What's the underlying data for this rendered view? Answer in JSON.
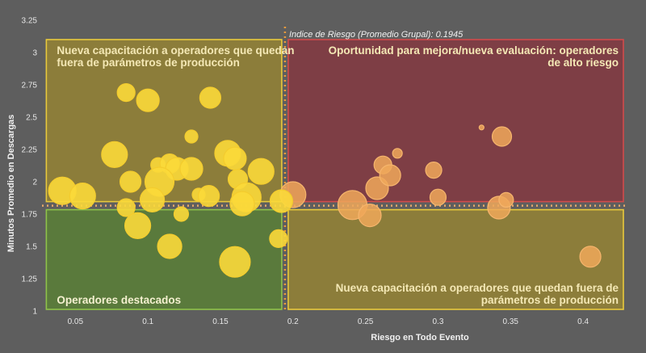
{
  "chart_data": {
    "type": "scatter",
    "xlabel": "Riesgo en Todo Evento",
    "ylabel": "Minutos Promedio en Descargas",
    "xlim": [
      0.027,
      0.43
    ],
    "ylim": [
      1,
      3.25
    ],
    "x_ticks": [
      "0.05",
      "0.1",
      "0.15",
      "0.2",
      "0.25",
      "0.3",
      "0.35",
      "0.4"
    ],
    "y_ticks": [
      "1",
      "1.25",
      "1.5",
      "1.75",
      "2",
      "2.25",
      "2.5",
      "2.75",
      "3",
      "3.25"
    ],
    "reference": {
      "label": "Indice de Riesgo (Promedio Grupal): 0.1945",
      "x": 0.1945,
      "y": 1.815
    },
    "quadrants": [
      {
        "name": "top-left",
        "label": "Nueva capacitación a operadores que quedan fuera de parámetros de producción",
        "lines": [
          "Nueva capacitación a operadores que quedan",
          "fuera de parámetros de producción"
        ],
        "color": "#e8c93c",
        "fill": "#8c7d3a"
      },
      {
        "name": "top-right",
        "label": "Oportunidad para mejora/nueva evaluación: operadores de alto riesgo",
        "lines": [
          "Oportunidad para mejora/nueva evaluación: operadores",
          "de alto riesgo"
        ],
        "color": "#d14b4b",
        "fill": "#7e3e45"
      },
      {
        "name": "bottom-left",
        "label": "Operadores destacados",
        "lines": [
          "Operadores destacados"
        ],
        "color": "#8ec24a",
        "fill": "#5a7a3c"
      },
      {
        "name": "bottom-right",
        "label": "Nueva capacitación a operadores que quedan fuera de parámetros de producción",
        "lines": [
          "Nueva capacitación a operadores que quedan fuera de",
          "parámetros de producción"
        ],
        "color": "#e8c93c",
        "fill": "#8c7d3a"
      }
    ],
    "points": [
      {
        "x": 0.085,
        "y": 2.69,
        "s": 11
      },
      {
        "x": 0.1,
        "y": 2.63,
        "s": 14
      },
      {
        "x": 0.143,
        "y": 2.65,
        "s": 13
      },
      {
        "x": 0.13,
        "y": 2.35,
        "s": 8
      },
      {
        "x": 0.077,
        "y": 2.21,
        "s": 16
      },
      {
        "x": 0.107,
        "y": 2.13,
        "s": 9
      },
      {
        "x": 0.115,
        "y": 2.14,
        "s": 12
      },
      {
        "x": 0.12,
        "y": 2.1,
        "s": 14
      },
      {
        "x": 0.13,
        "y": 2.1,
        "s": 14
      },
      {
        "x": 0.155,
        "y": 2.22,
        "s": 16
      },
      {
        "x": 0.16,
        "y": 2.18,
        "s": 14
      },
      {
        "x": 0.178,
        "y": 2.08,
        "s": 16
      },
      {
        "x": 0.162,
        "y": 2.02,
        "s": 12
      },
      {
        "x": 0.088,
        "y": 2.0,
        "s": 13
      },
      {
        "x": 0.108,
        "y": 2.0,
        "s": 18
      },
      {
        "x": 0.041,
        "y": 1.93,
        "s": 17
      },
      {
        "x": 0.055,
        "y": 1.89,
        "s": 16
      },
      {
        "x": 0.103,
        "y": 1.86,
        "s": 15
      },
      {
        "x": 0.135,
        "y": 1.9,
        "s": 8
      },
      {
        "x": 0.142,
        "y": 1.89,
        "s": 13
      },
      {
        "x": 0.168,
        "y": 1.88,
        "s": 18
      },
      {
        "x": 0.165,
        "y": 1.83,
        "s": 15
      },
      {
        "x": 0.2,
        "y": 1.9,
        "s": 16
      },
      {
        "x": 0.192,
        "y": 1.85,
        "s": 14
      },
      {
        "x": 0.085,
        "y": 1.8,
        "s": 11
      },
      {
        "x": 0.123,
        "y": 1.75,
        "s": 9
      },
      {
        "x": 0.093,
        "y": 1.66,
        "s": 16
      },
      {
        "x": 0.19,
        "y": 1.56,
        "s": 11
      },
      {
        "x": 0.115,
        "y": 1.5,
        "s": 15
      },
      {
        "x": 0.16,
        "y": 1.38,
        "s": 19
      },
      {
        "x": 0.241,
        "y": 1.82,
        "s": 18
      },
      {
        "x": 0.253,
        "y": 1.74,
        "s": 14
      },
      {
        "x": 0.258,
        "y": 1.95,
        "s": 14
      },
      {
        "x": 0.262,
        "y": 2.13,
        "s": 11
      },
      {
        "x": 0.267,
        "y": 2.05,
        "s": 13
      },
      {
        "x": 0.272,
        "y": 2.22,
        "s": 6
      },
      {
        "x": 0.297,
        "y": 2.09,
        "s": 10
      },
      {
        "x": 0.3,
        "y": 1.88,
        "s": 10
      },
      {
        "x": 0.33,
        "y": 2.42,
        "s": 3
      },
      {
        "x": 0.344,
        "y": 2.35,
        "s": 12
      },
      {
        "x": 0.342,
        "y": 1.8,
        "s": 14
      },
      {
        "x": 0.347,
        "y": 1.86,
        "s": 9
      },
      {
        "x": 0.405,
        "y": 1.42,
        "s": 13
      }
    ]
  }
}
